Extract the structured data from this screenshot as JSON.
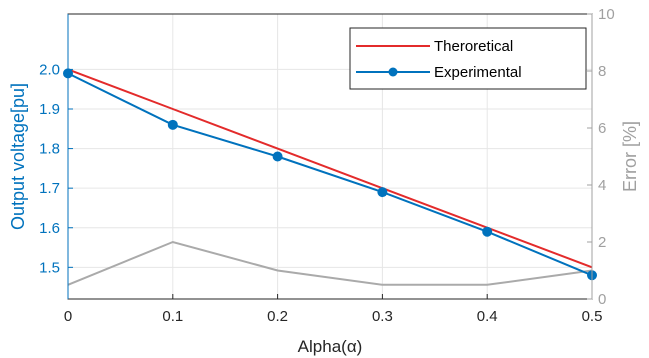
{
  "chart_data": {
    "type": "line",
    "xlabel": "Alpha(α)",
    "ylabel_left": "Output voltage[pu]",
    "ylabel_right": "Error [%]",
    "x": [
      0,
      0.1,
      0.2,
      0.3,
      0.4,
      0.5
    ],
    "xticks": [
      "0",
      "0.1",
      "0.2",
      "0.3",
      "0.4",
      "0.5"
    ],
    "xlim": [
      0,
      0.5
    ],
    "ylim_left": [
      1.42,
      2.14
    ],
    "yticks_left": [
      "1.5",
      "1.6",
      "1.7",
      "1.8",
      "1.9",
      "2.0"
    ],
    "ylim_right": [
      0,
      10
    ],
    "yticks_right": [
      "0",
      "2",
      "4",
      "6",
      "8",
      "10"
    ],
    "grid": true,
    "legend_position": "top-right",
    "series": [
      {
        "name": "Theroretical",
        "axis": "left",
        "values": [
          2.0,
          1.9,
          1.8,
          1.7,
          1.6,
          1.5
        ],
        "color": "#E32B2B",
        "marker": "none"
      },
      {
        "name": "Experimental",
        "axis": "left",
        "values": [
          1.99,
          1.86,
          1.78,
          1.69,
          1.59,
          1.48
        ],
        "color": "#0072BD",
        "marker": "circle"
      },
      {
        "name": "",
        "axis": "right",
        "values": [
          0.5,
          2.0,
          1.0,
          0.5,
          0.5,
          1.0
        ],
        "color": "#AAAAAA",
        "marker": "none"
      }
    ]
  }
}
